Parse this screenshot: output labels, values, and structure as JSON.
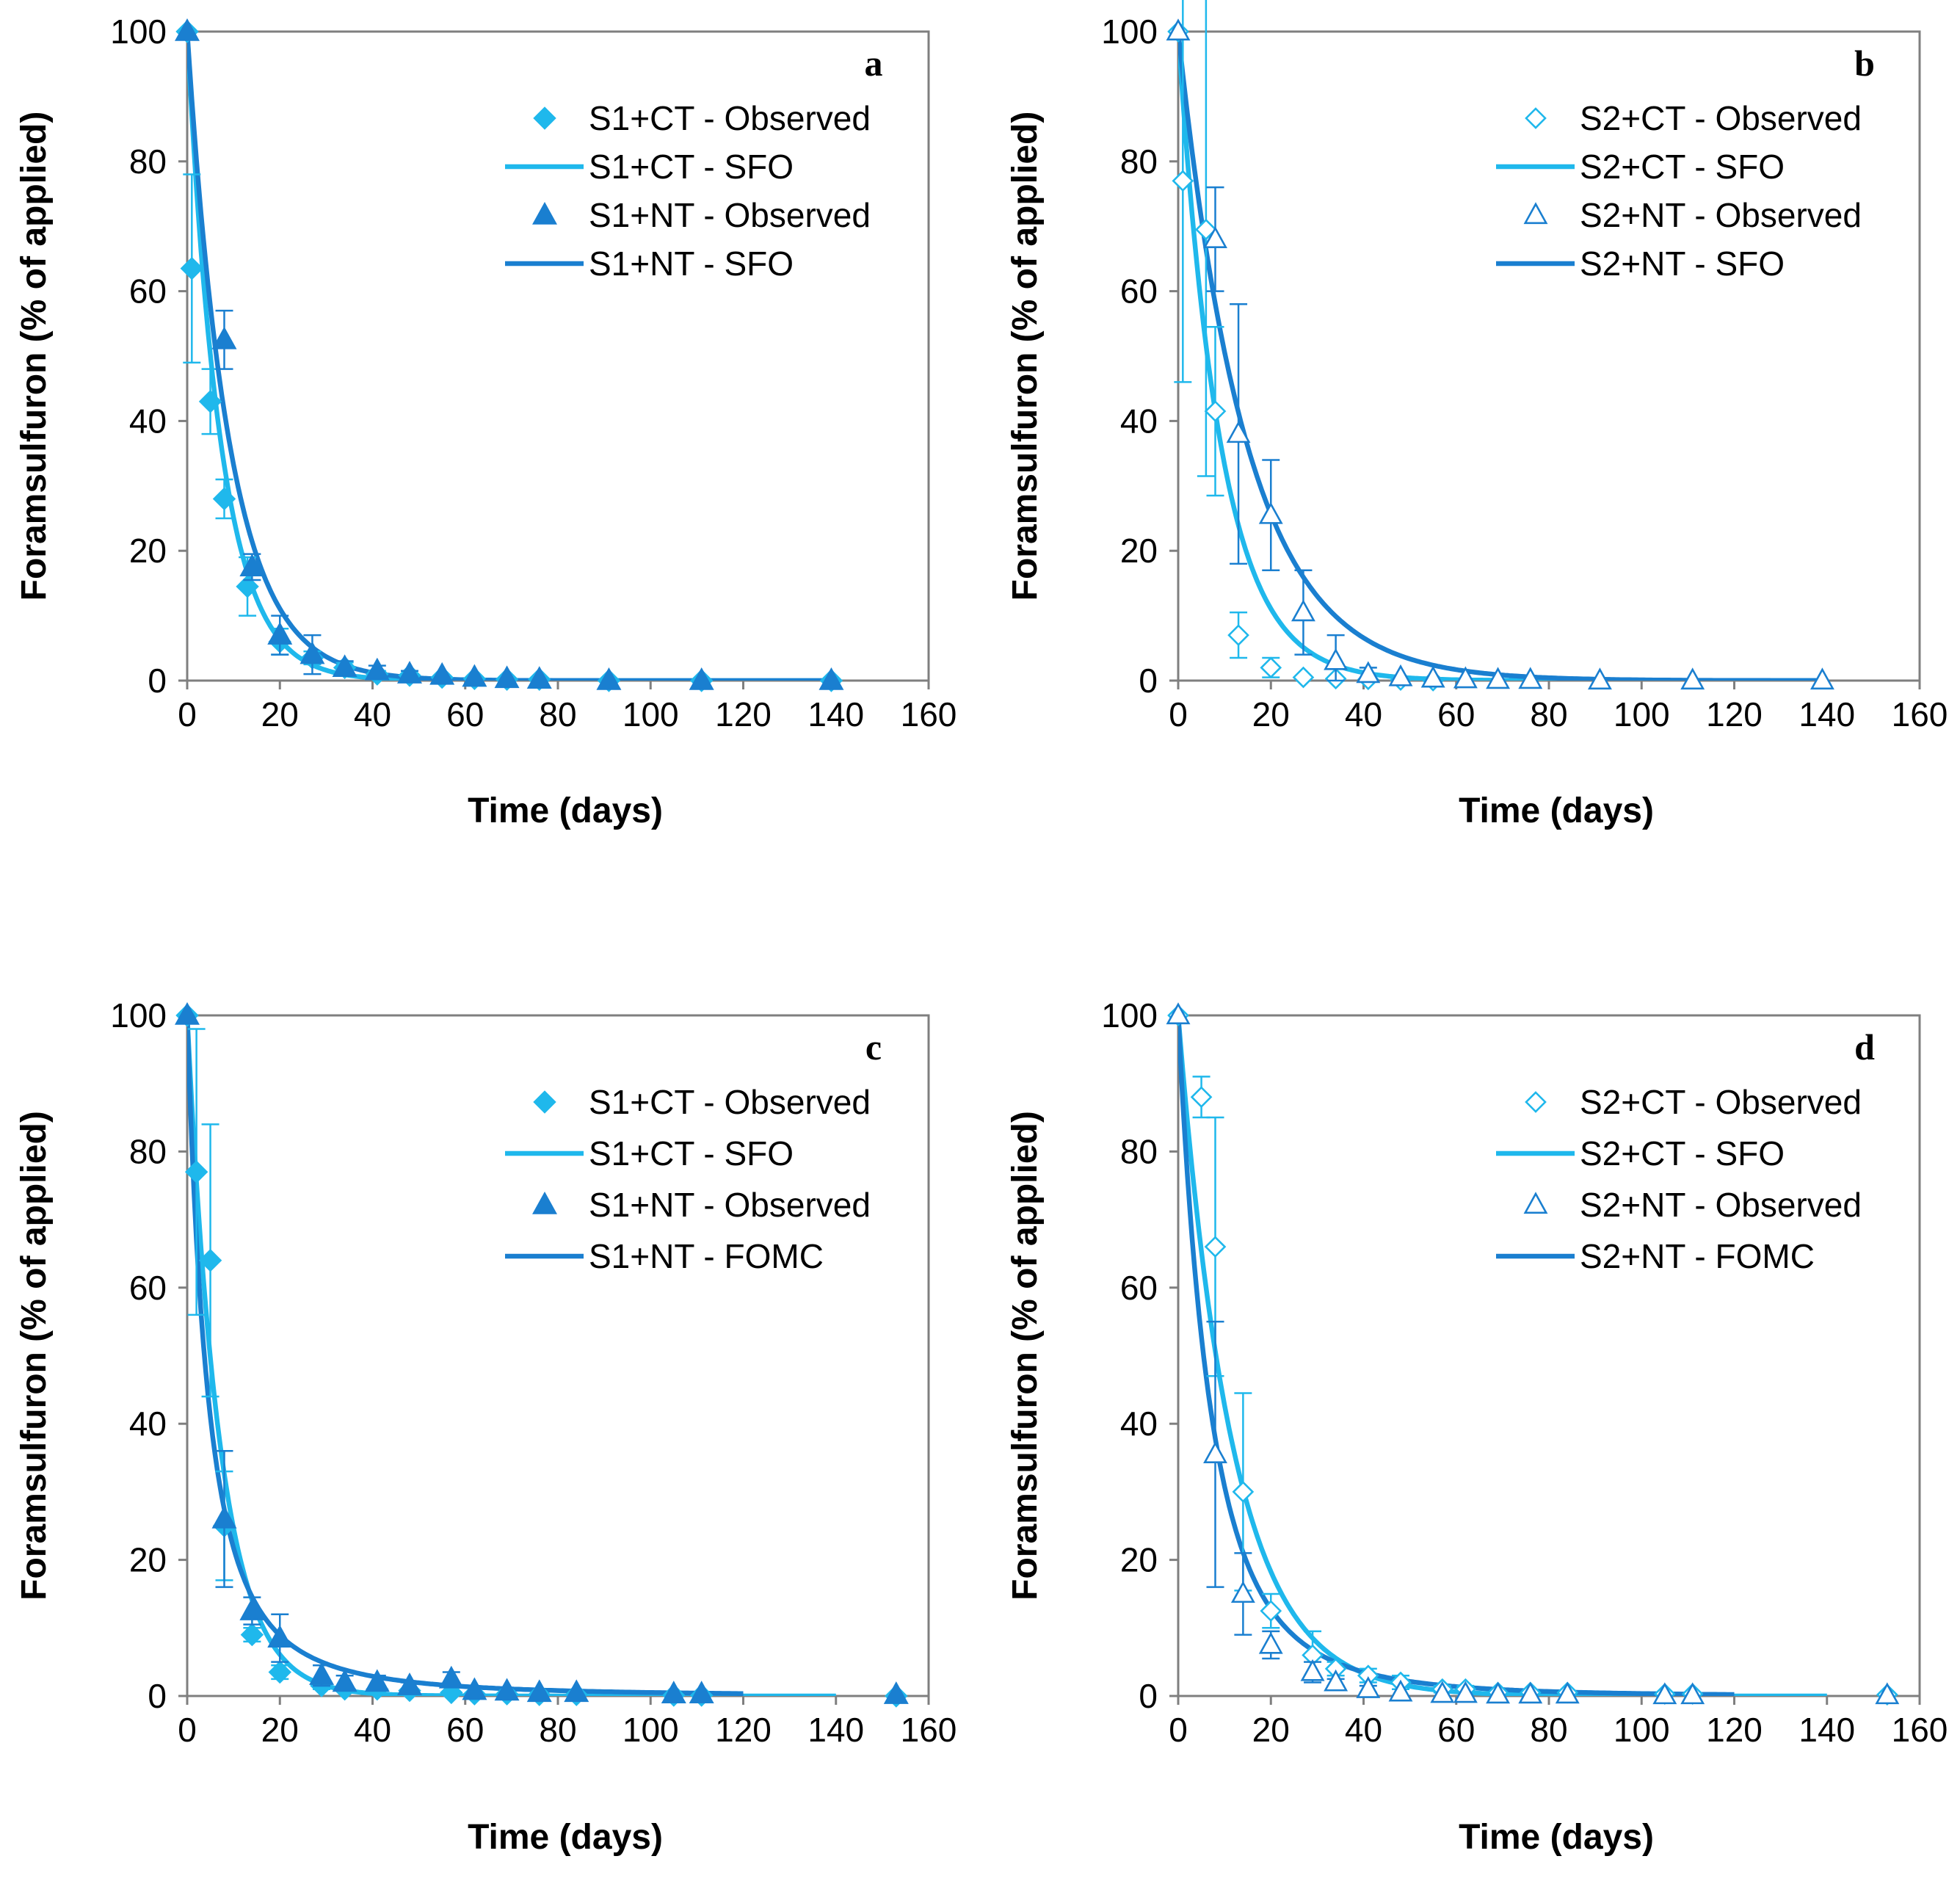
{
  "colors": {
    "ct": "#1fb8ec",
    "nt": "#1a7fd0",
    "axis": "#7f7f7f"
  },
  "chart_data": [
    {
      "type": "scatter",
      "panel": "a",
      "xlabel": "Time (days)",
      "ylabel": "Foramsulfuron (% of applied)",
      "xlim": [
        0,
        160
      ],
      "ylim": [
        0,
        100
      ],
      "xticks": [
        0,
        20,
        40,
        60,
        80,
        100,
        120,
        140,
        160
      ],
      "yticks": [
        0,
        20,
        40,
        60,
        80,
        100
      ],
      "legend": [
        "S1+CT - Observed",
        "S1+CT - SFO",
        "S1+NT - Observed",
        "S1+NT - SFO"
      ],
      "series": [
        {
          "name": "S1+CT - Observed",
          "kind": "points",
          "marker": "diamond-filled",
          "color": "ct",
          "x": [
            0,
            1,
            5,
            8,
            13,
            20,
            27,
            34,
            41,
            48,
            55,
            62,
            69,
            76,
            91,
            111,
            139
          ],
          "y": [
            100,
            63.5,
            43,
            28,
            14.5,
            6,
            3.5,
            2,
            1,
            0.8,
            0.5,
            0.3,
            0.2,
            0.2,
            0,
            0,
            0
          ],
          "err": [
            0,
            14.5,
            5,
            3,
            4.5,
            2,
            1,
            0.8,
            0.5,
            0,
            0,
            0,
            0,
            0,
            0,
            0,
            0
          ]
        },
        {
          "name": "S1+CT - SFO",
          "kind": "model",
          "model": "SFO",
          "color": "ct",
          "c0": 100,
          "k": 0.138,
          "xmax": 140
        },
        {
          "name": "S1+NT - Observed",
          "kind": "points",
          "marker": "triangle-filled",
          "color": "nt",
          "x": [
            0,
            8,
            14,
            20,
            27,
            34,
            41,
            48,
            55,
            62,
            69,
            76,
            91,
            111,
            139
          ],
          "y": [
            100,
            52.5,
            17.5,
            7,
            4,
            2,
            1.5,
            1,
            0.8,
            0.5,
            0.3,
            0.2,
            0,
            0,
            0
          ],
          "err": [
            0,
            4.5,
            2,
            3,
            3,
            1,
            0.8,
            0.5,
            0,
            0,
            0,
            0,
            0,
            0,
            0
          ]
        },
        {
          "name": "S1+NT - SFO",
          "kind": "model",
          "model": "SFO",
          "color": "nt",
          "c0": 100,
          "k": 0.11,
          "xmax": 140
        }
      ]
    },
    {
      "type": "scatter",
      "panel": "b",
      "xlabel": "Time (days)",
      "ylabel": "Foramsulfuron (% of applied)",
      "xlim": [
        0,
        160
      ],
      "ylim": [
        0,
        100
      ],
      "xticks": [
        0,
        20,
        40,
        60,
        80,
        100,
        120,
        140,
        160
      ],
      "yticks": [
        0,
        20,
        40,
        60,
        80,
        100
      ],
      "legend": [
        "S2+CT - Observed",
        "S2+CT - SFO",
        "S2+NT - Observed",
        "S2+NT - SFO"
      ],
      "series": [
        {
          "name": "S2+CT - Observed",
          "kind": "points",
          "marker": "diamond-open",
          "color": "ct",
          "x": [
            0,
            1,
            6,
            8,
            13,
            20,
            27,
            34,
            41,
            48,
            55
          ],
          "y": [
            100,
            77,
            69.5,
            41.5,
            7,
            2,
            0.5,
            0.3,
            0.2,
            0.1,
            0
          ],
          "err": [
            0,
            31,
            38,
            13,
            3.5,
            1.5,
            0,
            0,
            0,
            0,
            0
          ]
        },
        {
          "name": "S2+CT - SFO",
          "kind": "model",
          "model": "SFO",
          "color": "ct",
          "c0": 100,
          "k": 0.11,
          "xmax": 140
        },
        {
          "name": "S2+NT - Observed",
          "kind": "points",
          "marker": "triangle-open",
          "color": "nt",
          "x": [
            0,
            8,
            13,
            20,
            27,
            34,
            41,
            48,
            55,
            62,
            69,
            76,
            91,
            111,
            139
          ],
          "y": [
            100,
            68,
            38,
            25.5,
            10.5,
            3,
            1,
            0.5,
            0.3,
            0.2,
            0.1,
            0.1,
            0,
            0,
            0
          ],
          "err": [
            0,
            8,
            20,
            8.5,
            6.5,
            4,
            1,
            0,
            0,
            0,
            0,
            0,
            0,
            0,
            0
          ]
        },
        {
          "name": "S2+NT - SFO",
          "kind": "model",
          "model": "SFO",
          "color": "nt",
          "c0": 100,
          "k": 0.068,
          "xmax": 140
        }
      ]
    },
    {
      "type": "scatter",
      "panel": "c",
      "xlabel": "Time (days)",
      "ylabel": "Foramsulfuron (% of applied)",
      "xlim": [
        0,
        160
      ],
      "ylim": [
        0,
        100
      ],
      "xticks": [
        0,
        20,
        40,
        60,
        80,
        100,
        120,
        140,
        160
      ],
      "yticks": [
        0,
        20,
        40,
        60,
        80,
        100
      ],
      "legend": [
        "S1+CT - Observed",
        "S1+CT - SFO",
        "S1+NT - Observed",
        "S1+NT - FOMC"
      ],
      "series": [
        {
          "name": "S1+CT - Observed",
          "kind": "points",
          "marker": "diamond-filled",
          "color": "ct",
          "x": [
            0,
            2,
            5,
            8,
            14,
            20,
            29,
            34,
            41,
            48,
            57,
            62,
            69,
            76,
            84,
            105,
            111,
            153
          ],
          "y": [
            100,
            77,
            64,
            25,
            9,
            3.5,
            1.5,
            1,
            1,
            0.8,
            0.5,
            0.3,
            0.3,
            0.2,
            0.2,
            0.1,
            0.1,
            0
          ],
          "err": [
            0,
            21,
            20,
            8,
            1,
            1,
            0.5,
            0,
            0,
            0,
            0,
            0,
            0,
            0,
            0,
            0,
            0,
            0
          ]
        },
        {
          "name": "S1+CT - SFO",
          "kind": "model",
          "model": "SFO",
          "color": "ct",
          "c0": 100,
          "k": 0.14,
          "xmax": 140
        },
        {
          "name": "S1+NT - Observed",
          "kind": "points",
          "marker": "triangle-filled",
          "color": "nt",
          "x": [
            0,
            8,
            14,
            20,
            29,
            34,
            41,
            48,
            57,
            62,
            69,
            76,
            84,
            105,
            111,
            153
          ],
          "y": [
            100,
            26,
            12.5,
            8.5,
            3,
            2,
            2,
            1.5,
            2.5,
            0.8,
            0.7,
            0.5,
            0.5,
            0.3,
            0.3,
            0.2
          ],
          "err": [
            0,
            10,
            2,
            3.5,
            1.5,
            1,
            1,
            0.5,
            1,
            0,
            0,
            0,
            0,
            0,
            0,
            0
          ]
        },
        {
          "name": "S1+NT - FOMC",
          "kind": "model",
          "model": "FOMC",
          "color": "nt",
          "c0": 100,
          "alpha": 2.2,
          "beta": 10,
          "xmax": 120
        }
      ]
    },
    {
      "type": "scatter",
      "panel": "d",
      "xlabel": "Time (days)",
      "ylabel": "Foramsulfuron (% of applied)",
      "xlim": [
        0,
        160
      ],
      "ylim": [
        0,
        100
      ],
      "xticks": [
        0,
        20,
        40,
        60,
        80,
        100,
        120,
        140,
        160
      ],
      "yticks": [
        0,
        20,
        40,
        60,
        80,
        100
      ],
      "legend": [
        "S2+CT - Observed",
        "S2+CT - SFO",
        "S2+NT - Observed",
        "S2+NT - FOMC"
      ],
      "series": [
        {
          "name": "S2+CT - Observed",
          "kind": "points",
          "marker": "diamond-open",
          "color": "ct",
          "x": [
            0,
            5,
            8,
            14,
            20,
            29,
            34,
            41,
            48,
            57,
            62,
            69,
            76,
            84,
            105,
            111,
            153
          ],
          "y": [
            100,
            88,
            66,
            30,
            12.5,
            6,
            4,
            3,
            2,
            1,
            1,
            0.5,
            0.5,
            0.5,
            0.3,
            0.3,
            0.2
          ],
          "err": [
            0,
            3,
            19,
            14.5,
            2.5,
            3.5,
            1,
            1,
            1,
            0.5,
            0.5,
            0,
            0,
            0,
            0,
            0,
            0
          ]
        },
        {
          "name": "S2+CT - SFO",
          "kind": "model",
          "model": "SFO",
          "color": "ct",
          "c0": 100,
          "k": 0.085,
          "xmax": 140
        },
        {
          "name": "S2+NT - Observed",
          "kind": "points",
          "marker": "triangle-open",
          "color": "nt",
          "x": [
            0,
            8,
            14,
            20,
            29,
            34,
            41,
            48,
            57,
            62,
            69,
            76,
            84,
            105,
            111,
            153
          ],
          "y": [
            100,
            35.5,
            15,
            7.5,
            3.5,
            2,
            1,
            0.5,
            0.3,
            0.3,
            0.2,
            0.2,
            0.2,
            0.1,
            0.1,
            0.1
          ],
          "err": [
            0,
            19.5,
            6,
            2,
            1.5,
            0.5,
            0.5,
            0,
            0,
            0,
            0,
            0,
            0,
            0,
            0,
            0
          ]
        },
        {
          "name": "S2+NT - FOMC",
          "kind": "model",
          "model": "FOMC",
          "color": "nt",
          "c0": 100,
          "alpha": 3.5,
          "beta": 25,
          "xmax": 120
        }
      ]
    }
  ]
}
